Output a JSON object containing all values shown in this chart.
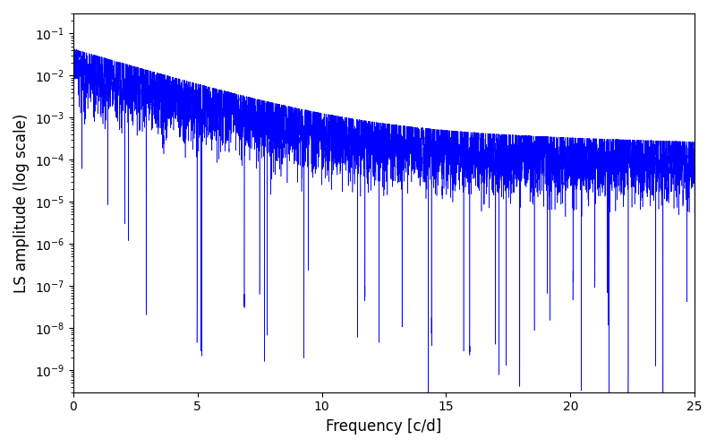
{
  "xlabel": "Frequency [c/d]",
  "ylabel": "LS amplitude (log scale)",
  "xlim": [
    0,
    25
  ],
  "ylim": [
    3e-10,
    0.3
  ],
  "line_color": "#0000FF",
  "linewidth": 0.4,
  "figsize": [
    8.0,
    5.0
  ],
  "dpi": 100,
  "freq_max": 25.0,
  "n_points": 15000,
  "peak_amp": 0.028,
  "seed": 17
}
